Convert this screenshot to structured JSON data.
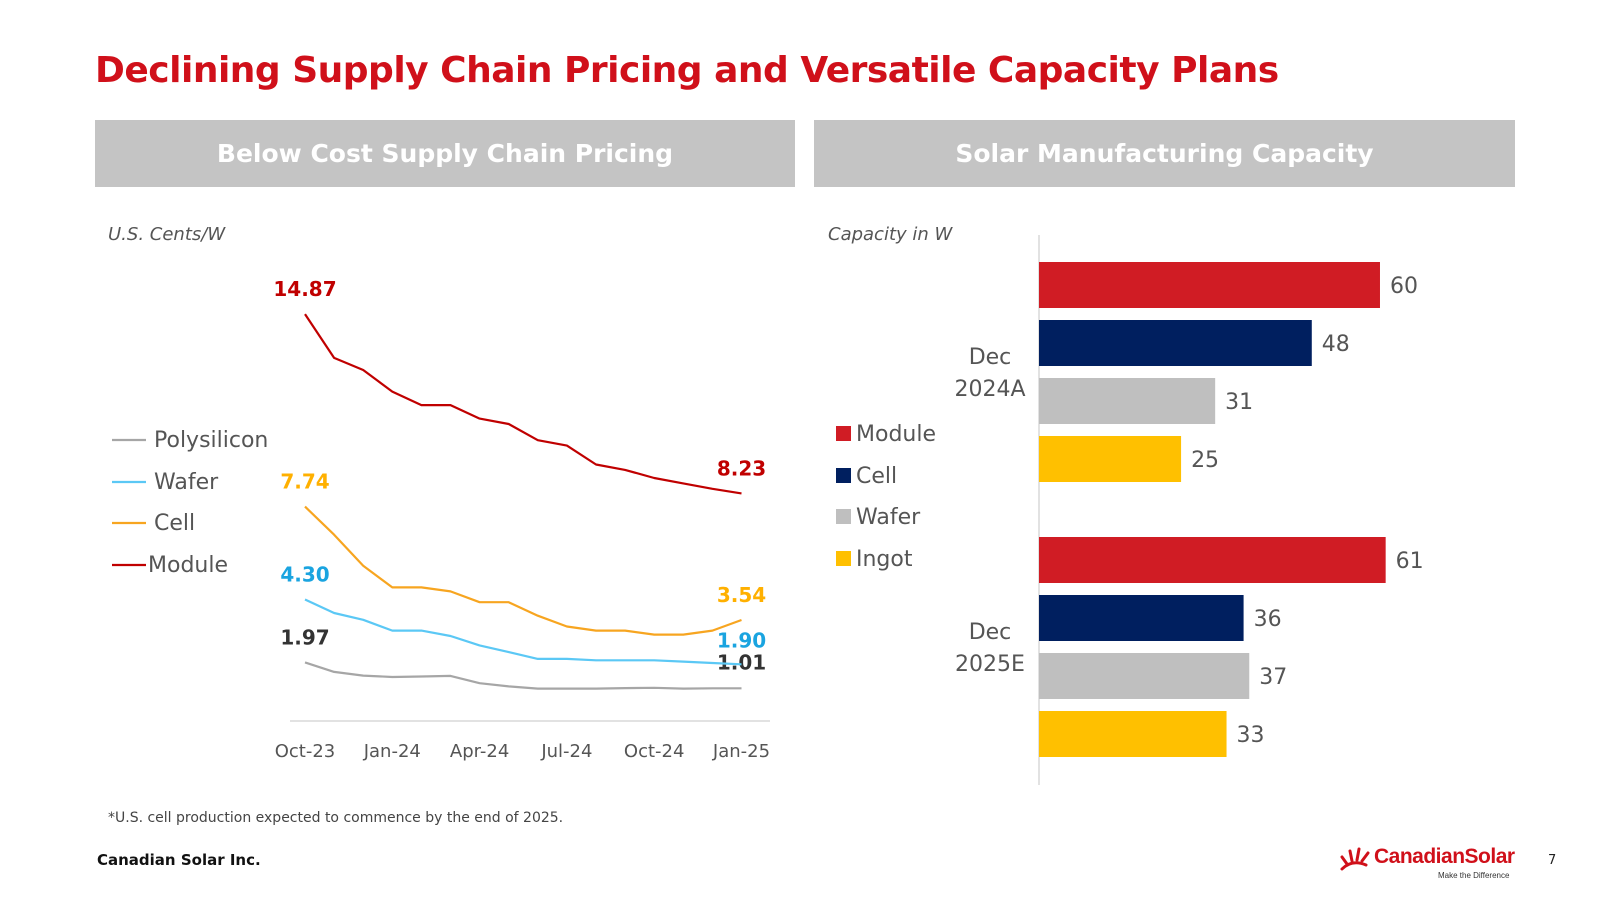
{
  "page": {
    "title": "Declining Supply Chain Pricing and Versatile Capacity Plans",
    "footnote": "*U.S. cell production expected to commence by the end of 2025.",
    "company": "Canadian Solar Inc.",
    "page_number": "7",
    "logo": {
      "name": "CanadianSolar",
      "tagline": "Make the Difference"
    }
  },
  "left_panel": {
    "header": "Below Cost Supply Chain Pricing",
    "unit_label": "U.S. Cents/W"
  },
  "right_panel": {
    "header": "Solar Manufacturing Capacity",
    "unit_label": "Capacity in W"
  },
  "colors": {
    "title": "#d0101a",
    "banner": "#c4c4c4",
    "polysilicon": "#a6a6a6",
    "wafer": "#5bc8f5",
    "cell": "#f7a520",
    "module": "#c00000",
    "bar_module": "#d01c24",
    "bar_cell": "#001f5f",
    "bar_wafer": "#bfbfbf",
    "bar_ingot": "#ffc000"
  },
  "chart_data": [
    {
      "type": "line",
      "title": "Below Cost Supply Chain Pricing",
      "ylabel": "U.S. Cents/W",
      "ylim": [
        0,
        16
      ],
      "x_tick_labels": [
        "Oct-23",
        "Jan-24",
        "Apr-24",
        "Jul-24",
        "Oct-24",
        "Jan-25"
      ],
      "x_tick_positions": [
        0,
        3,
        6,
        9,
        12,
        15
      ],
      "legend": [
        "Polysilicon",
        "Wafer",
        "Cell",
        "Module"
      ],
      "legend_position": "left",
      "series": [
        {
          "name": "Polysilicon",
          "color_key": "polysilicon",
          "start_label": "1.97",
          "end_label": "1.01",
          "label_color": "#333333",
          "values": [
            1.97,
            1.62,
            1.48,
            1.43,
            1.45,
            1.47,
            1.2,
            1.08,
            1.0,
            1.0,
            1.0,
            1.02,
            1.03,
            1.0,
            1.01,
            1.01
          ]
        },
        {
          "name": "Wafer",
          "color_key": "wafer",
          "start_label": "4.30",
          "end_label": "1.90",
          "label_color": "#1aa4e0",
          "values": [
            4.3,
            3.8,
            3.55,
            3.15,
            3.15,
            2.95,
            2.6,
            2.35,
            2.1,
            2.1,
            2.05,
            2.05,
            2.05,
            2.0,
            1.95,
            1.9
          ]
        },
        {
          "name": "Cell",
          "color_key": "cell",
          "start_label": "7.74",
          "end_label": "3.54",
          "label_color": "#ffb000",
          "values": [
            7.74,
            6.7,
            5.55,
            4.75,
            4.75,
            4.6,
            4.2,
            4.2,
            3.7,
            3.3,
            3.15,
            3.15,
            3.0,
            3.0,
            3.15,
            3.54
          ]
        },
        {
          "name": "Module",
          "color_key": "module",
          "start_label": "14.87",
          "end_label": "8.23",
          "label_color": "#c00000",
          "values": [
            14.87,
            13.25,
            12.8,
            12.0,
            11.5,
            11.5,
            11.0,
            10.8,
            10.2,
            10.0,
            9.3,
            9.1,
            8.8,
            8.6,
            8.4,
            8.23
          ]
        }
      ]
    },
    {
      "type": "bar",
      "orientation": "horizontal",
      "title": "Solar Manufacturing Capacity",
      "xlabel": "Capacity in W",
      "xlim": [
        0,
        60
      ],
      "legend": [
        "Module",
        "Cell",
        "Wafer",
        "Ingot"
      ],
      "legend_position": "left",
      "groups": [
        {
          "label_line1": "Dec",
          "label_line2": "2024A",
          "bars": [
            {
              "name": "Module",
              "color_key": "bar_module",
              "value": 60
            },
            {
              "name": "Cell",
              "color_key": "bar_cell",
              "value": 48
            },
            {
              "name": "Wafer",
              "color_key": "bar_wafer",
              "value": 31
            },
            {
              "name": "Ingot",
              "color_key": "bar_ingot",
              "value": 25
            }
          ]
        },
        {
          "label_line1": "Dec",
          "label_line2": "2025E",
          "bars": [
            {
              "name": "Module",
              "color_key": "bar_module",
              "value": 61
            },
            {
              "name": "Cell",
              "color_key": "bar_cell",
              "value": 36
            },
            {
              "name": "Wafer",
              "color_key": "bar_wafer",
              "value": 37
            },
            {
              "name": "Ingot",
              "color_key": "bar_ingot",
              "value": 33
            }
          ]
        }
      ]
    }
  ]
}
